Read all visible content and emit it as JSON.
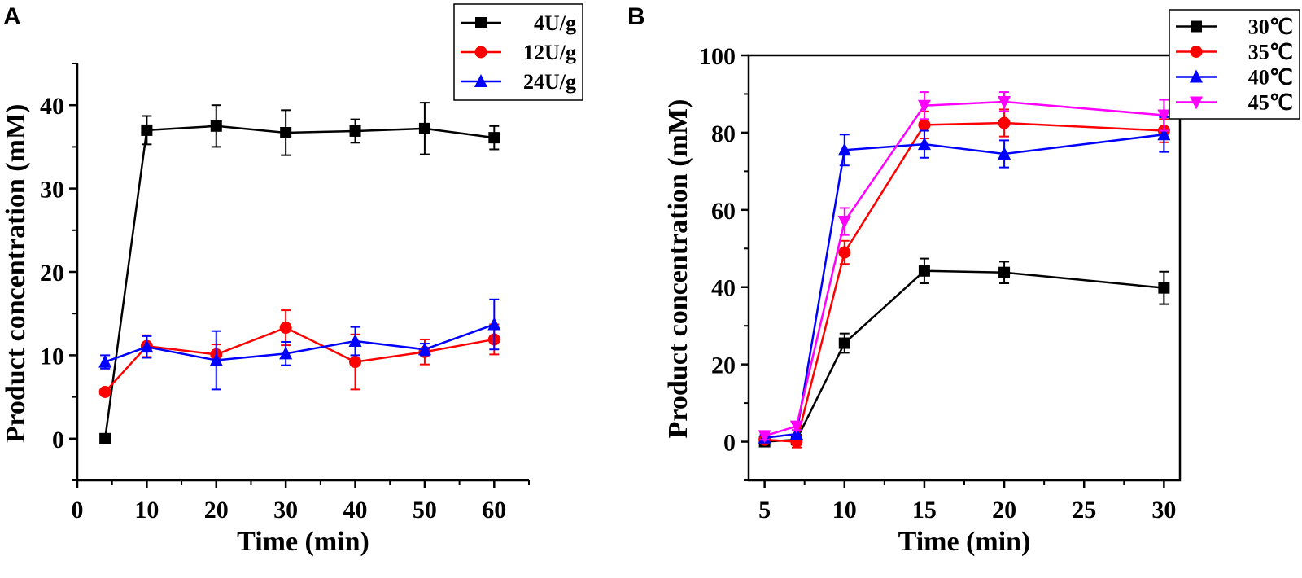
{
  "chart_data": [
    {
      "panel": "A",
      "type": "line",
      "title": "",
      "xlabel": "Time (min)",
      "ylabel": "Product concentration (mM)",
      "xlim": [
        0,
        65
      ],
      "ylim": [
        -5,
        45
      ],
      "xticks": [
        0,
        10,
        20,
        30,
        40,
        50,
        60
      ],
      "yticks": [
        0,
        10,
        20,
        30,
        40
      ],
      "legend_position": "top-right",
      "x": [
        4,
        10,
        20,
        30,
        40,
        50,
        60
      ],
      "series": [
        {
          "name": "4U/g",
          "color": "#000000",
          "marker": "square",
          "values": [
            0,
            37,
            37.5,
            36.7,
            36.9,
            37.2,
            36.1
          ],
          "errors": [
            0,
            1.7,
            2.5,
            2.7,
            1.4,
            3.1,
            1.4
          ]
        },
        {
          "name": "12U/g",
          "color": "#ff0000",
          "marker": "circle",
          "values": [
            5.6,
            11.1,
            10.1,
            13.3,
            9.2,
            10.4,
            11.9
          ],
          "errors": [
            0.4,
            1.3,
            1.2,
            2.1,
            3.3,
            1.5,
            1.8
          ]
        },
        {
          "name": "24U/g",
          "color": "#0000ff",
          "marker": "triangle-up",
          "values": [
            9.2,
            11.0,
            9.4,
            10.2,
            11.7,
            10.7,
            13.7
          ],
          "errors": [
            0.8,
            1.3,
            3.5,
            1.4,
            1.7,
            0.7,
            3.0
          ]
        }
      ]
    },
    {
      "panel": "B",
      "type": "line",
      "title": "",
      "xlabel": "Time (min)",
      "ylabel": "Product concentration (mM)",
      "xlim": [
        4,
        31
      ],
      "ylim": [
        -10,
        100
      ],
      "xticks": [
        5,
        10,
        15,
        20,
        25,
        30
      ],
      "yticks": [
        0,
        20,
        40,
        60,
        80,
        100
      ],
      "legend_position": "top-right",
      "x": [
        5,
        7,
        10,
        15,
        20,
        30
      ],
      "series": [
        {
          "name": "30℃",
          "color": "#000000",
          "marker": "square",
          "values": [
            0,
            0.5,
            25.5,
            44.2,
            43.8,
            39.8
          ],
          "errors": [
            0.8,
            1.2,
            2.5,
            3.2,
            2.8,
            4.2
          ]
        },
        {
          "name": "35℃",
          "color": "#ff0000",
          "marker": "circle",
          "values": [
            0.5,
            0,
            49,
            82,
            82.5,
            80.5
          ],
          "errors": [
            0.5,
            1.5,
            3.0,
            3.5,
            3.5,
            3.0
          ]
        },
        {
          "name": "40℃",
          "color": "#0000ff",
          "marker": "triangle-up",
          "values": [
            1,
            2,
            75.5,
            77,
            74.5,
            79.5
          ],
          "errors": [
            0.8,
            1.0,
            4.0,
            3.5,
            3.5,
            4.5
          ]
        },
        {
          "name": "45℃",
          "color": "#ff00ff",
          "marker": "triangle-down",
          "values": [
            1.5,
            4,
            57,
            87,
            88,
            84.5
          ],
          "errors": [
            1.0,
            1.0,
            3.5,
            3.5,
            2.5,
            4.0
          ]
        }
      ]
    }
  ]
}
